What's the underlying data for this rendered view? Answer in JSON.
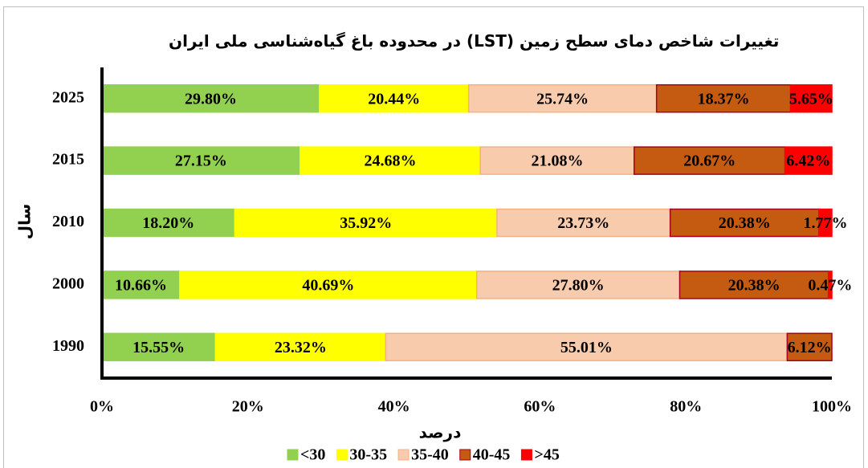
{
  "chart_data": {
    "type": "stacked-bar-horizontal",
    "title": "تغییرات شاخص دمای سطح زمین (LST) در محدوده باغ گیاه‌شناسی ملی ایران",
    "x_label": "درصد",
    "y_label": "سال",
    "categories": [
      "2025",
      "2015",
      "2010",
      "2000",
      "1990"
    ],
    "series": [
      {
        "name": "<30",
        "color": "#92d050",
        "border": "#92d050",
        "values": [
          29.8,
          27.15,
          18.2,
          10.66,
          15.55
        ],
        "value_labels": [
          "29.80%",
          "27.15%",
          "18.20%",
          "10.66%",
          "15.55%"
        ]
      },
      {
        "name": "30-35",
        "color": "#ffff00",
        "border": "#ffff00",
        "values": [
          20.44,
          24.68,
          35.92,
          40.69,
          23.32
        ],
        "value_labels": [
          "20.44%",
          "24.68%",
          "35.92%",
          "40.69%",
          "23.32%"
        ]
      },
      {
        "name": "35-40",
        "color": "#f8cbad",
        "border": "#f4b183",
        "values": [
          25.74,
          21.08,
          23.73,
          27.8,
          55.01
        ],
        "value_labels": [
          "25.74%",
          "21.08%",
          "23.73%",
          "27.80%",
          "55.01%"
        ]
      },
      {
        "name": "40-45",
        "color": "#c55a11",
        "border": "#a50021",
        "values": [
          18.37,
          20.67,
          20.38,
          20.38,
          6.12
        ],
        "value_labels": [
          "18.37%",
          "20.67%",
          "20.38%",
          "20.38%",
          "6.12%"
        ]
      },
      {
        "name": ">45",
        "color": "#ff0000",
        "border": "#ff0000",
        "values": [
          5.65,
          6.42,
          1.77,
          0.47,
          null
        ],
        "value_labels": [
          "5.65%",
          "6.42%",
          "1.77%",
          "0.47%",
          null
        ]
      }
    ],
    "xlim": [
      0,
      100
    ],
    "xticks": [
      {
        "value": 0,
        "label": "0%"
      },
      {
        "value": 20,
        "label": "20%"
      },
      {
        "value": 40,
        "label": "40%"
      },
      {
        "value": 60,
        "label": "60%"
      },
      {
        "value": 80,
        "label": "80%"
      },
      {
        "value": 100,
        "label": "100%"
      }
    ],
    "legend": "bottom"
  }
}
